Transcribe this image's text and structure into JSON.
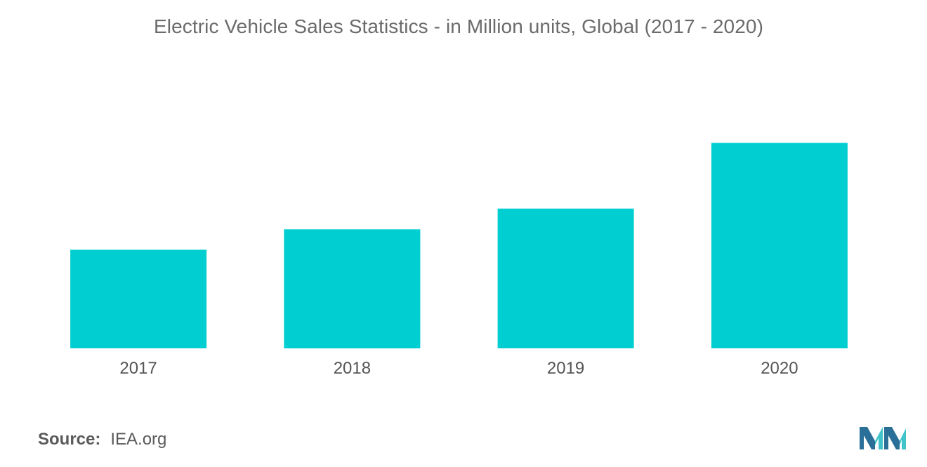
{
  "chart_data": {
    "type": "bar",
    "title": "Electric Vehicle Sales Statistics - in Million units, Global (2017 - 2020)",
    "categories": [
      "2017",
      "2018",
      "2019",
      "2020"
    ],
    "values": [
      1.2,
      1.45,
      1.7,
      2.5
    ],
    "xlabel": "",
    "ylabel": "",
    "ylim": [
      0,
      3
    ],
    "grid": false,
    "legend": "none",
    "bar_color": "#00CED1"
  },
  "source": {
    "label": "Source:",
    "value": "IEA.org"
  },
  "logo": {
    "icon": "mordor-intelligence-logo-icon",
    "color_dark": "#2a6f97",
    "color_light": "#40c4c9"
  }
}
